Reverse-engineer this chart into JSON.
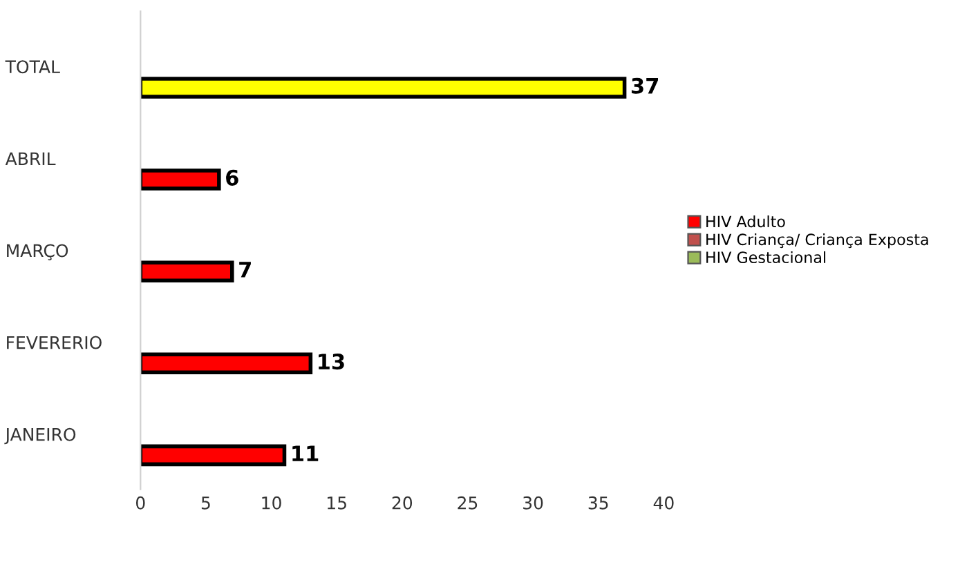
{
  "chart_data": {
    "type": "bar",
    "orientation": "horizontal",
    "categories": [
      "TOTAL",
      "ABRIL",
      "MARÇO",
      "FEVERERIO",
      "JANEIRO"
    ],
    "series": [
      {
        "name": "HIV Adulto",
        "color": "#ff0000",
        "colors": [
          "#ffff00",
          "#ff0000",
          "#ff0000",
          "#ff0000",
          "#ff0000"
        ],
        "values": [
          37,
          6,
          7,
          13,
          11
        ]
      },
      {
        "name": "HIV Criança/ Criança Exposta",
        "color": "#c0504d",
        "values": [
          null,
          null,
          null,
          null,
          null
        ]
      },
      {
        "name": "HIV Gestacional",
        "color": "#9bbb59",
        "values": [
          null,
          null,
          null,
          null,
          null
        ]
      }
    ],
    "xlim": [
      0,
      40
    ],
    "xticks": [
      0,
      5,
      10,
      15,
      20,
      25,
      30,
      35,
      40
    ],
    "data_labels": true,
    "grid": false,
    "legend": "right"
  }
}
